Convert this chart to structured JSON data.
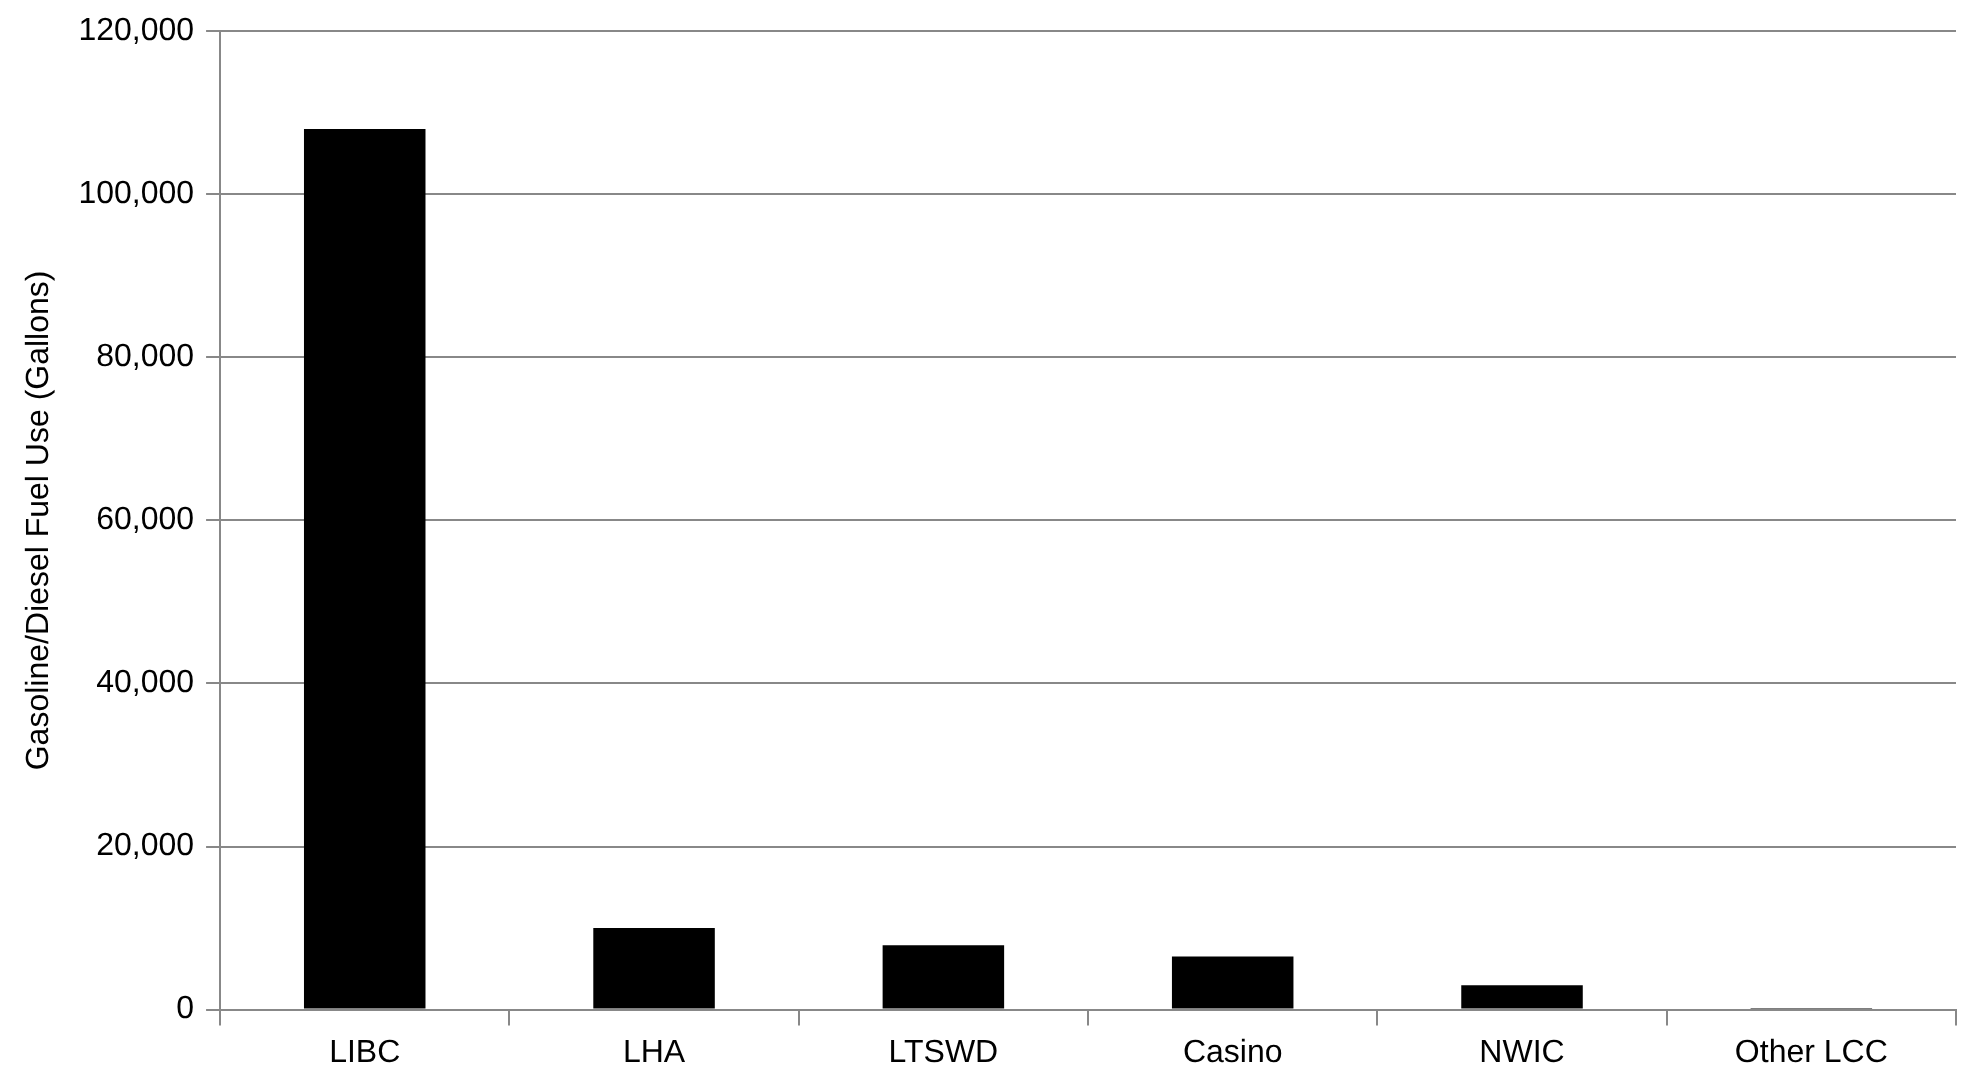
{
  "chart_data": {
    "type": "bar",
    "ylabel": "Gasoline/Diesel Fuel Use (Gallons)",
    "categories": [
      "LIBC",
      "LHA",
      "LTSWD",
      "Casino",
      "NWIC",
      "Other LCC"
    ],
    "values": [
      108000,
      10000,
      7900,
      6500,
      3000,
      200
    ],
    "color": "#000000",
    "ylim": [
      0,
      120000
    ],
    "yticks": [
      0,
      {
        "value": 20000,
        "label": "20,000"
      },
      {
        "value": 40000,
        "label": "40,000"
      },
      {
        "value": 60000,
        "label": "60,000"
      },
      {
        "value": 80000,
        "label": "80,000"
      },
      {
        "value": 100000,
        "label": "100,000"
      },
      {
        "value": 120000,
        "label": "120,000"
      }
    ],
    "grid": "y",
    "legend": false
  }
}
